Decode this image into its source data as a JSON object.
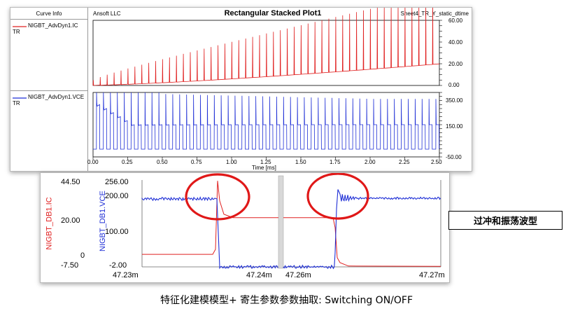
{
  "top_plot": {
    "curve_info_header": "Curve Info",
    "ansoft_label": "Ansoft LLC",
    "title": "Rectangular Stacked Plot1",
    "sheet_label": "Sheet4_TR_Y_static_dtime",
    "trace1_name": "NIGBT_AdvDyn1.IC",
    "trace1_sub": "TR",
    "trace2_name": "NIGBT_AdvDyn1.VCE",
    "trace2_sub": "TR",
    "xlabel": "Time [ms]",
    "x_ticks": [
      "0.00",
      "0.25",
      "0.50",
      "0.75",
      "1.00",
      "1.25",
      "1.50",
      "1.75",
      "2.00",
      "2.25",
      "2.50"
    ],
    "y1_ticks": [
      "60.00",
      "40.00",
      "20.00",
      "0.00"
    ],
    "y2_ticks": [
      "350.00",
      "150.00",
      "-50.00"
    ]
  },
  "bottom_plot": {
    "ylabel_ic": "NIGBT_DB1.IC",
    "ylabel_vce": "NIGBT_DB1.VCE",
    "ic_ticks": [
      "44.50",
      "20.00",
      "0",
      "-7.50"
    ],
    "vce_ticks": [
      "256.00",
      "200.00",
      "100.00",
      "-2.00"
    ],
    "left_x_ticks": [
      "47.23m",
      "47.24m"
    ],
    "right_x_ticks": [
      "47.26m",
      "47.27m"
    ]
  },
  "annotation": "过冲和振荡波型",
  "caption": "特征化建模模型+ 寄生参数参数抽取: Switching ON/OFF",
  "colors": {
    "ic": "#e02020",
    "vce": "#1f2fd6",
    "circle": "#e01818"
  },
  "chart_data": [
    {
      "type": "line",
      "title": "Rectangular Stacked Plot1",
      "xlabel": "Time [ms]",
      "xlim": [
        0,
        2.5
      ],
      "series": [
        {
          "name": "NIGBT_AdvDyn1.IC",
          "ylim": [
            0,
            60
          ],
          "description_values": {
            "baseline_start": 0,
            "baseline_end": 20,
            "pulse_peak_end": 60
          }
        },
        {
          "name": "NIGBT_AdvDyn1.VCE",
          "ylim": [
            -50,
            350
          ],
          "description_values": {
            "high": 150,
            "low": -2,
            "overshoot_peak": 350
          }
        }
      ]
    },
    {
      "type": "line",
      "series": [
        {
          "name": "NIGBT_DB1.IC",
          "ylim": [
            -7.5,
            44.5
          ]
        },
        {
          "name": "NIGBT_DB1.VCE",
          "ylim": [
            -2,
            256
          ]
        }
      ]
    }
  ]
}
